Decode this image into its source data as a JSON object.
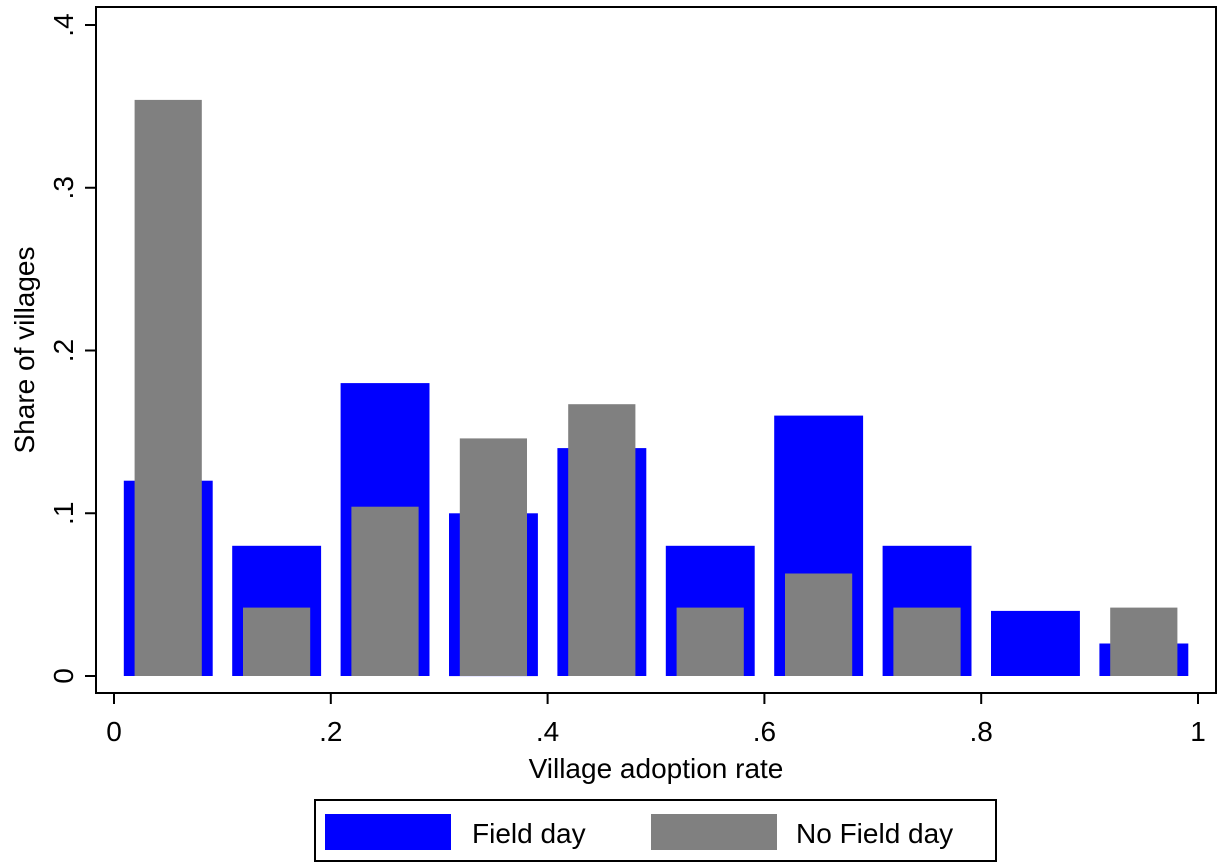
{
  "chart_data": {
    "type": "bar",
    "title": "",
    "xlabel": "Village adoption rate",
    "ylabel": "Share of villages",
    "xlim": [
      0,
      1
    ],
    "ylim": [
      0,
      0.4
    ],
    "x_ticks": [
      {
        "value": 0,
        "label": "0"
      },
      {
        "value": 0.2,
        "label": ".2"
      },
      {
        "value": 0.4,
        "label": ".4"
      },
      {
        "value": 0.6,
        "label": ".6"
      },
      {
        "value": 0.8,
        "label": ".8"
      },
      {
        "value": 1,
        "label": "1"
      }
    ],
    "y_ticks": [
      {
        "value": 0,
        "label": "0"
      },
      {
        "value": 0.1,
        "label": ".1"
      },
      {
        "value": 0.2,
        "label": ".2"
      },
      {
        "value": 0.3,
        "label": ".3"
      },
      {
        "value": 0.4,
        "label": ".4"
      }
    ],
    "grid": false,
    "legend_position": "bottom",
    "bins": [
      0.05,
      0.15,
      0.25,
      0.35,
      0.45,
      0.55,
      0.65,
      0.75,
      0.85,
      0.95
    ],
    "series": [
      {
        "name": "Field day",
        "color": "#0000ff",
        "bar_width": 0.082,
        "values": [
          0.12,
          0.08,
          0.18,
          0.1,
          0.14,
          0.08,
          0.16,
          0.08,
          0.04,
          0.02
        ]
      },
      {
        "name": "No Field day",
        "color": "#808080",
        "bar_width": 0.062,
        "values": [
          0.354,
          0.042,
          0.104,
          0.146,
          0.167,
          0.042,
          0.063,
          0.042,
          0,
          0.042
        ]
      }
    ]
  }
}
